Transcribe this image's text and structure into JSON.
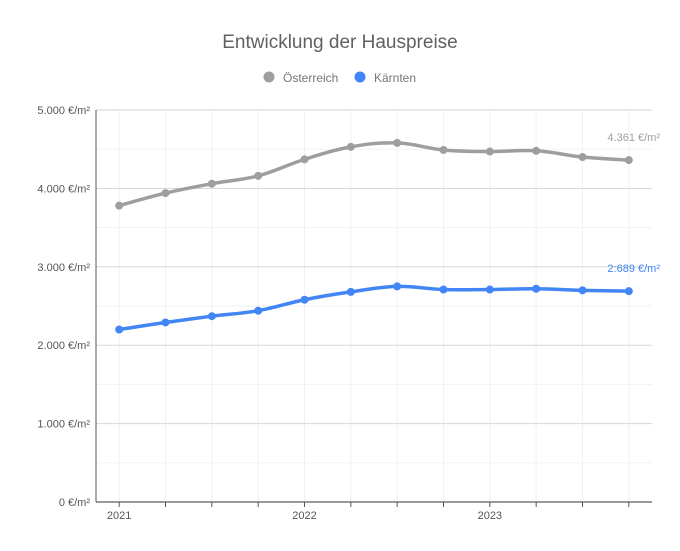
{
  "chart_data": {
    "type": "line",
    "title": "Entwicklung der Hauspreise",
    "x": [
      2021.0,
      2021.25,
      2021.5,
      2021.75,
      2022.0,
      2022.25,
      2022.5,
      2022.75,
      2023.0,
      2023.25,
      2023.5,
      2023.75
    ],
    "x_ticks": [
      2021,
      2022,
      2023
    ],
    "x_tick_labels": [
      "2021",
      "2022",
      "2023"
    ],
    "ylim": [
      0,
      5000
    ],
    "y_ticks": [
      0,
      1000,
      2000,
      3000,
      4000,
      5000
    ],
    "y_tick_labels": [
      "0 €/m²",
      "1.000 €/m²",
      "2.000 €/m²",
      "3.000 €/m²",
      "4.000 €/m²",
      "5.000 €/m²"
    ],
    "grid": true,
    "legend_position": "top-center",
    "series": [
      {
        "name": "Österreich",
        "color": "#9e9e9e",
        "values": [
          3780,
          3940,
          4060,
          4160,
          4370,
          4530,
          4580,
          4490,
          4470,
          4480,
          4400,
          4361
        ],
        "end_label": "4.361 €/m²"
      },
      {
        "name": "Kärnten",
        "color": "#4285f4",
        "values": [
          2200,
          2290,
          2370,
          2440,
          2580,
          2680,
          2750,
          2710,
          2710,
          2720,
          2700,
          2689
        ],
        "end_label": "2:689 €/m²"
      }
    ]
  }
}
